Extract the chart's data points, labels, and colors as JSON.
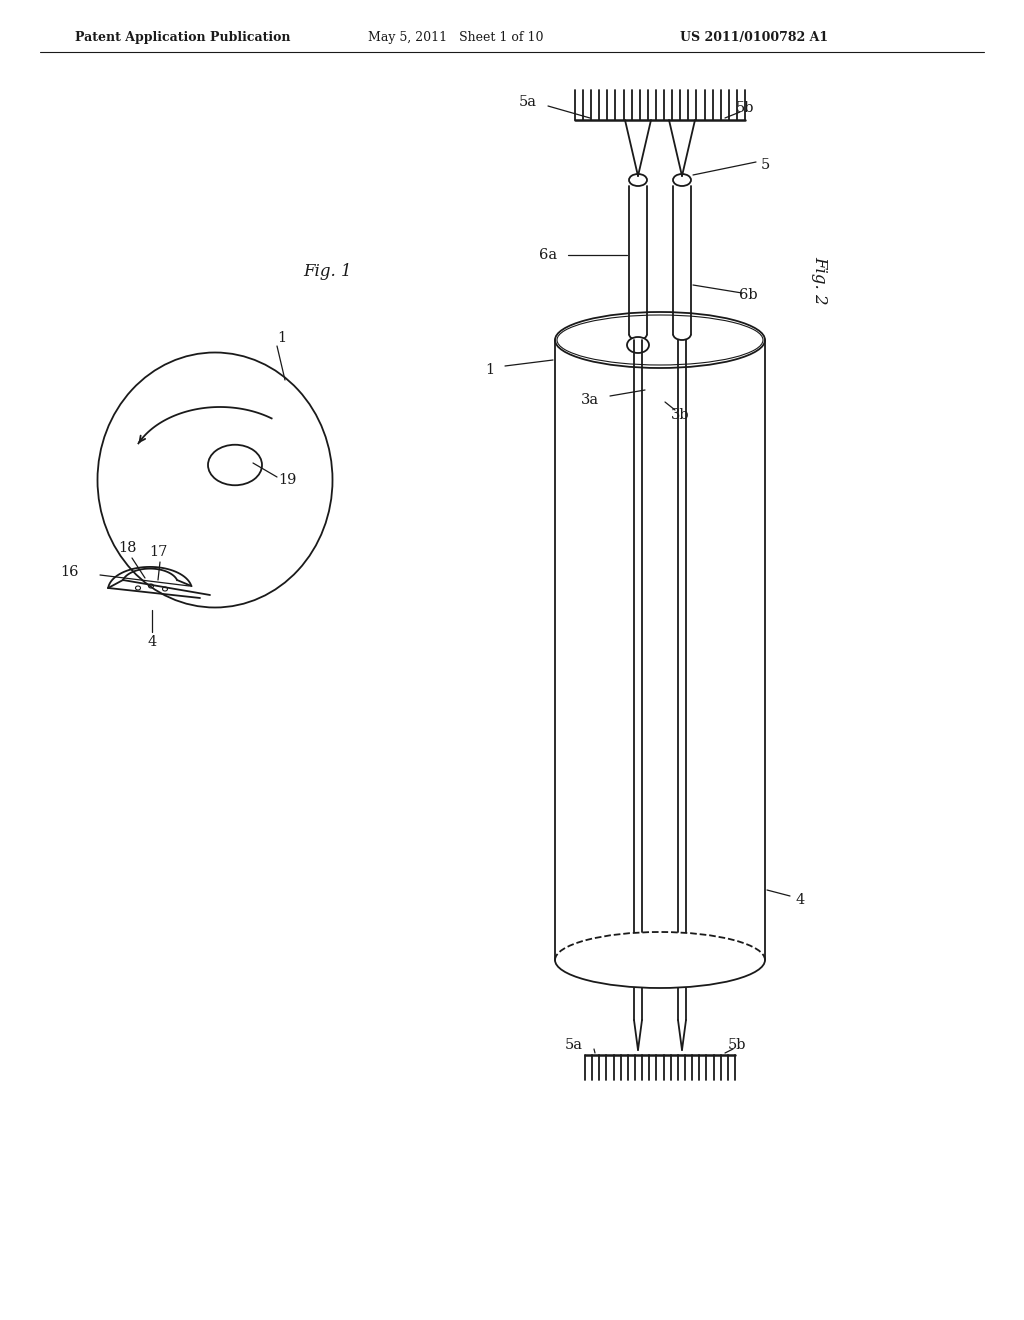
{
  "bg_color": "#ffffff",
  "line_color": "#1a1a1a",
  "header_left": "Patent Application Publication",
  "header_mid": "May 5, 2011   Sheet 1 of 10",
  "header_right": "US 2011/0100782 A1",
  "fig1_label": "Fig. 1",
  "fig2_label": "Fig. 2",
  "header_font_size": 9,
  "label_font_size": 10.5
}
